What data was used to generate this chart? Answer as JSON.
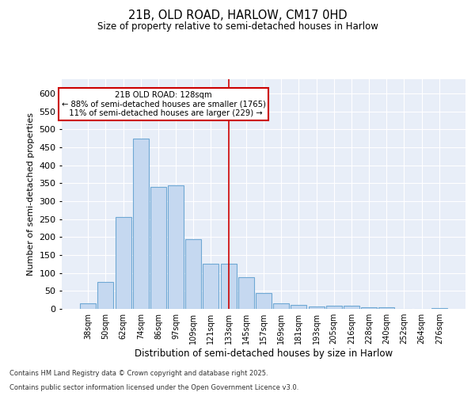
{
  "title": "21B, OLD ROAD, HARLOW, CM17 0HD",
  "subtitle": "Size of property relative to semi-detached houses in Harlow",
  "xlabel": "Distribution of semi-detached houses by size in Harlow",
  "ylabel": "Number of semi-detached properties",
  "categories": [
    "38sqm",
    "50sqm",
    "62sqm",
    "74sqm",
    "86sqm",
    "97sqm",
    "109sqm",
    "121sqm",
    "133sqm",
    "145sqm",
    "157sqm",
    "169sqm",
    "181sqm",
    "193sqm",
    "205sqm",
    "216sqm",
    "228sqm",
    "240sqm",
    "252sqm",
    "264sqm",
    "276sqm"
  ],
  "values": [
    15,
    75,
    255,
    475,
    340,
    345,
    195,
    125,
    125,
    88,
    45,
    15,
    10,
    6,
    8,
    8,
    5,
    5,
    1,
    1,
    3
  ],
  "bar_color": "#c5d8f0",
  "bar_edge_color": "#6fa8d4",
  "property_line_x": 8.0,
  "property_label": "21B OLD ROAD: 128sqm",
  "pct_smaller": "88%",
  "pct_larger": "11%",
  "count_smaller": 1765,
  "count_larger": 229,
  "annotation_box_color": "#cc0000",
  "vertical_line_color": "#cc0000",
  "ylim": [
    0,
    640
  ],
  "yticks": [
    0,
    50,
    100,
    150,
    200,
    250,
    300,
    350,
    400,
    450,
    500,
    550,
    600
  ],
  "background_color": "#e8eef8",
  "grid_color": "#ffffff",
  "footer_line1": "Contains HM Land Registry data © Crown copyright and database right 2025.",
  "footer_line2": "Contains public sector information licensed under the Open Government Licence v3.0."
}
